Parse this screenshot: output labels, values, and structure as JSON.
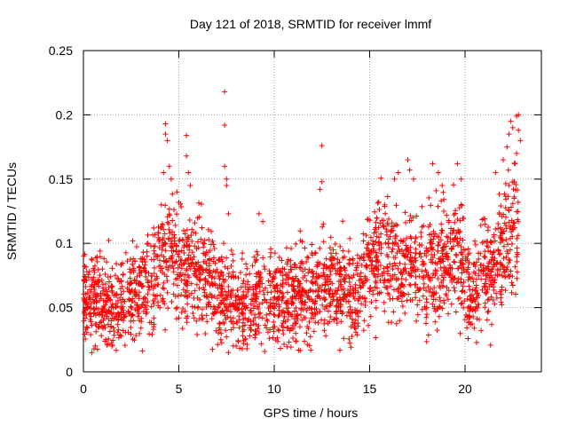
{
  "chart_data": {
    "type": "scatter",
    "title": "Day 121 of 2018, SRMTID for receiver lmmf",
    "xlabel": "GPS time / hours",
    "ylabel": "SRMTID / TECUs",
    "xlim": [
      0,
      24
    ],
    "ylim": [
      0,
      0.25
    ],
    "x_ticks": [
      0,
      5,
      10,
      15,
      20
    ],
    "x_tick_labels": [
      "0",
      "5",
      "10",
      "15",
      "20"
    ],
    "y_ticks": [
      0,
      0.05,
      0.1,
      0.15,
      0.2,
      0.25
    ],
    "y_tick_labels": [
      "0",
      "0.05",
      "0.1",
      "0.15",
      "0.2",
      "0.25"
    ],
    "grid": true,
    "marker": "+",
    "marker_color": "#ff0000",
    "series": [
      {
        "name": "SRMTID",
        "trend": [
          {
            "x": 0.0,
            "y": 0.06
          },
          {
            "x": 0.5,
            "y": 0.055
          },
          {
            "x": 1.0,
            "y": 0.055
          },
          {
            "x": 1.5,
            "y": 0.05
          },
          {
            "x": 2.0,
            "y": 0.055
          },
          {
            "x": 2.5,
            "y": 0.06
          },
          {
            "x": 3.0,
            "y": 0.062
          },
          {
            "x": 3.5,
            "y": 0.068
          },
          {
            "x": 4.0,
            "y": 0.08
          },
          {
            "x": 4.3,
            "y": 0.09
          },
          {
            "x": 4.7,
            "y": 0.095
          },
          {
            "x": 5.0,
            "y": 0.085
          },
          {
            "x": 5.5,
            "y": 0.08
          },
          {
            "x": 6.0,
            "y": 0.075
          },
          {
            "x": 6.5,
            "y": 0.07
          },
          {
            "x": 7.0,
            "y": 0.06
          },
          {
            "x": 7.5,
            "y": 0.058
          },
          {
            "x": 8.0,
            "y": 0.052
          },
          {
            "x": 8.5,
            "y": 0.052
          },
          {
            "x": 9.0,
            "y": 0.055
          },
          {
            "x": 9.5,
            "y": 0.06
          },
          {
            "x": 10.0,
            "y": 0.055
          },
          {
            "x": 10.5,
            "y": 0.055
          },
          {
            "x": 11.0,
            "y": 0.055
          },
          {
            "x": 11.5,
            "y": 0.06
          },
          {
            "x": 12.0,
            "y": 0.058
          },
          {
            "x": 12.5,
            "y": 0.065
          },
          {
            "x": 13.0,
            "y": 0.068
          },
          {
            "x": 13.5,
            "y": 0.066
          },
          {
            "x": 14.0,
            "y": 0.064
          },
          {
            "x": 14.5,
            "y": 0.068
          },
          {
            "x": 15.0,
            "y": 0.08
          },
          {
            "x": 15.5,
            "y": 0.09
          },
          {
            "x": 16.0,
            "y": 0.085
          },
          {
            "x": 16.5,
            "y": 0.082
          },
          {
            "x": 17.0,
            "y": 0.085
          },
          {
            "x": 17.5,
            "y": 0.088
          },
          {
            "x": 18.0,
            "y": 0.075
          },
          {
            "x": 18.5,
            "y": 0.085
          },
          {
            "x": 19.0,
            "y": 0.088
          },
          {
            "x": 19.5,
            "y": 0.092
          },
          {
            "x": 20.0,
            "y": 0.08
          },
          {
            "x": 20.3,
            "y": 0.06
          },
          {
            "x": 20.7,
            "y": 0.075
          },
          {
            "x": 21.0,
            "y": 0.085
          },
          {
            "x": 21.5,
            "y": 0.085
          },
          {
            "x": 22.0,
            "y": 0.095
          },
          {
            "x": 22.5,
            "y": 0.11
          },
          {
            "x": 22.8,
            "y": 0.12
          }
        ],
        "highlights": [
          {
            "x": 4.3,
            "y": 0.193
          },
          {
            "x": 4.3,
            "y": 0.185
          },
          {
            "x": 4.4,
            "y": 0.18
          },
          {
            "x": 4.5,
            "y": 0.16
          },
          {
            "x": 4.2,
            "y": 0.155
          },
          {
            "x": 4.6,
            "y": 0.15
          },
          {
            "x": 4.9,
            "y": 0.14
          },
          {
            "x": 5.0,
            "y": 0.132
          },
          {
            "x": 5.4,
            "y": 0.184
          },
          {
            "x": 5.4,
            "y": 0.168
          },
          {
            "x": 5.5,
            "y": 0.155
          },
          {
            "x": 5.6,
            "y": 0.145
          },
          {
            "x": 7.4,
            "y": 0.218
          },
          {
            "x": 7.4,
            "y": 0.192
          },
          {
            "x": 7.4,
            "y": 0.16
          },
          {
            "x": 7.5,
            "y": 0.15
          },
          {
            "x": 7.5,
            "y": 0.145
          },
          {
            "x": 7.6,
            "y": 0.123
          },
          {
            "x": 9.2,
            "y": 0.123
          },
          {
            "x": 9.4,
            "y": 0.117
          },
          {
            "x": 12.5,
            "y": 0.176
          },
          {
            "x": 12.5,
            "y": 0.148
          },
          {
            "x": 12.4,
            "y": 0.142
          },
          {
            "x": 16.5,
            "y": 0.155
          },
          {
            "x": 16.3,
            "y": 0.15
          },
          {
            "x": 17.0,
            "y": 0.165
          },
          {
            "x": 17.1,
            "y": 0.157
          },
          {
            "x": 17.3,
            "y": 0.15
          },
          {
            "x": 18.3,
            "y": 0.162
          },
          {
            "x": 18.6,
            "y": 0.155
          },
          {
            "x": 18.8,
            "y": 0.145
          },
          {
            "x": 19.6,
            "y": 0.162
          },
          {
            "x": 19.8,
            "y": 0.15
          },
          {
            "x": 21.6,
            "y": 0.155
          },
          {
            "x": 22.0,
            "y": 0.165
          },
          {
            "x": 22.2,
            "y": 0.175
          },
          {
            "x": 22.3,
            "y": 0.185
          },
          {
            "x": 22.4,
            "y": 0.195
          },
          {
            "x": 22.5,
            "y": 0.19
          },
          {
            "x": 22.7,
            "y": 0.199
          },
          {
            "x": 22.8,
            "y": 0.2
          },
          {
            "x": 22.8,
            "y": 0.188
          },
          {
            "x": 22.9,
            "y": 0.18
          },
          {
            "x": 22.7,
            "y": 0.17
          },
          {
            "x": 22.6,
            "y": 0.162
          },
          {
            "x": 7.6,
            "y": 0.015
          },
          {
            "x": 8.0,
            "y": 0.02
          },
          {
            "x": 1.5,
            "y": 0.02
          },
          {
            "x": 7.2,
            "y": 0.025
          },
          {
            "x": 8.4,
            "y": 0.022
          }
        ]
      }
    ]
  }
}
